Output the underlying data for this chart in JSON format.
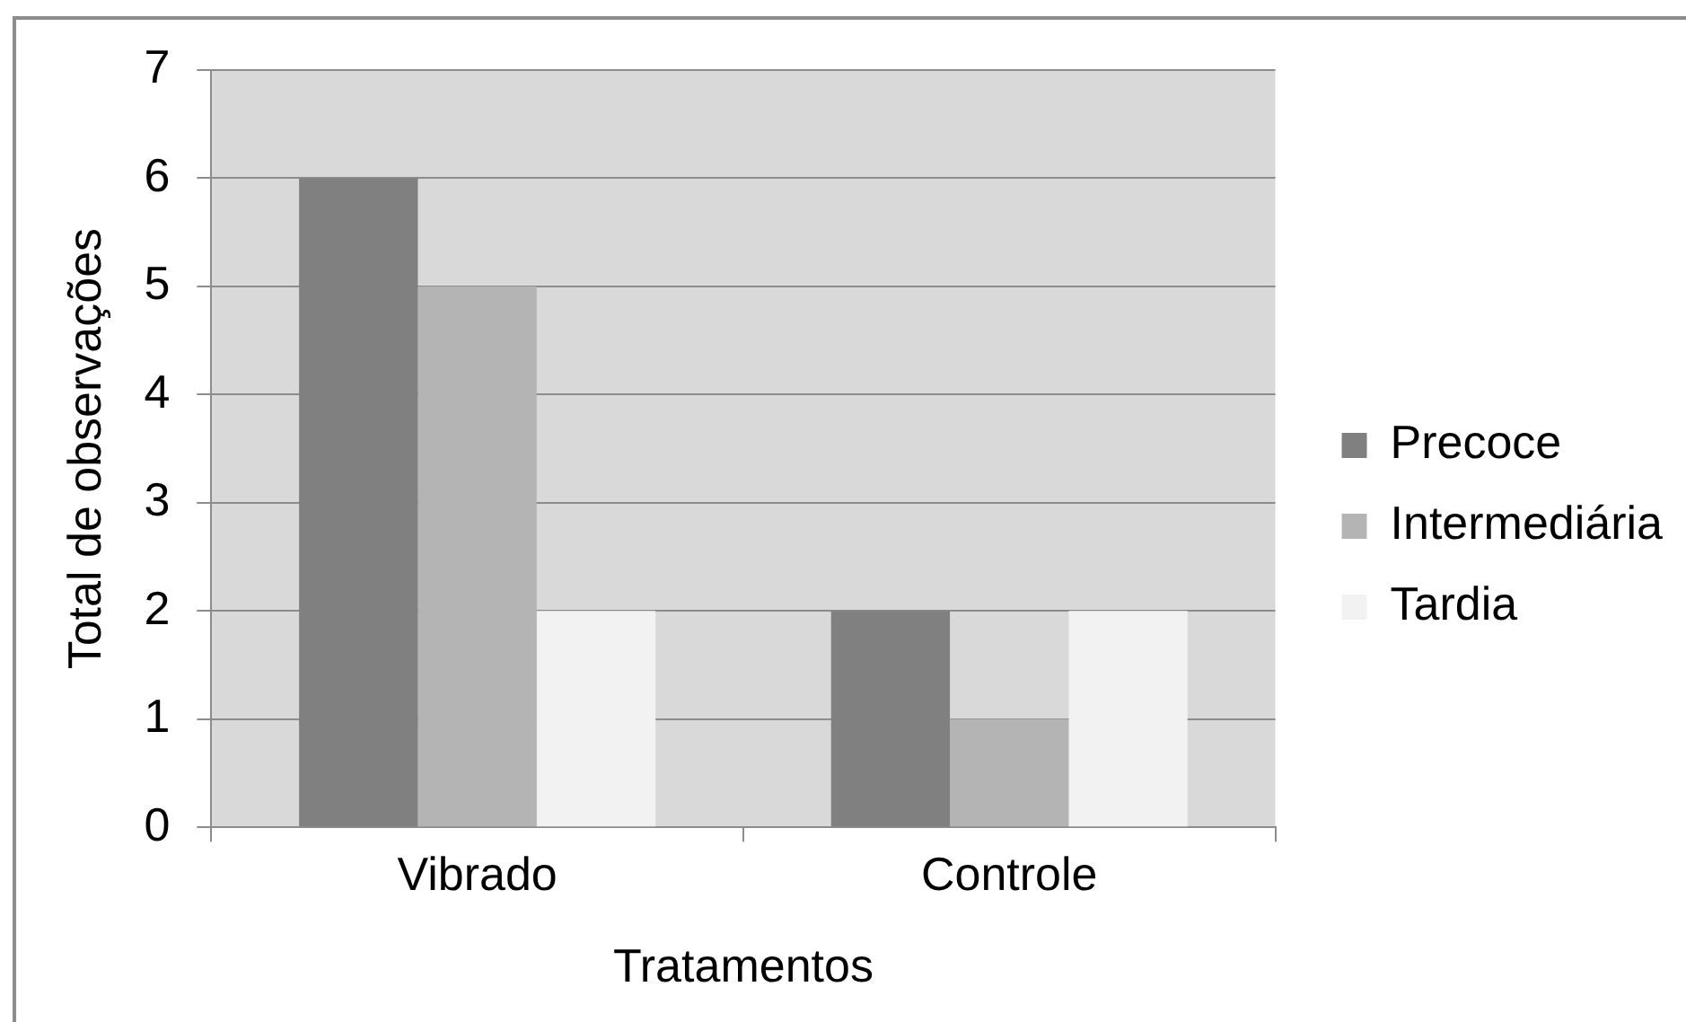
{
  "chart_data": {
    "type": "bar",
    "xlabel": "Tratamentos",
    "ylabel": "Total de observações",
    "categories": [
      "Vibrado",
      "Controle"
    ],
    "series": [
      {
        "name": "Precoce",
        "color": "#808080",
        "values": [
          6,
          2
        ]
      },
      {
        "name": "Intermediária",
        "color": "#b4b4b4",
        "values": [
          5,
          1
        ]
      },
      {
        "name": "Tardia",
        "color": "#f2f2f2",
        "values": [
          2,
          2
        ]
      }
    ],
    "ylim": [
      0,
      7
    ],
    "yticks": [
      0,
      1,
      2,
      3,
      4,
      5,
      6,
      7
    ],
    "grid": "y",
    "legend": "right"
  }
}
